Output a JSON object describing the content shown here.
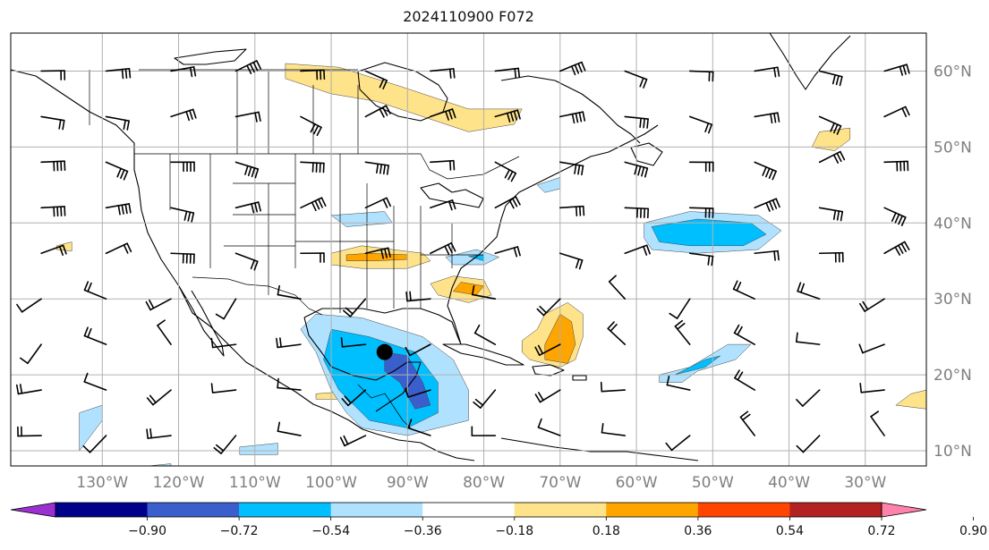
{
  "title": "2024110900 F072",
  "map": {
    "projection": "PlateCarree",
    "lon_range": [
      -142,
      -22
    ],
    "lat_range": [
      8,
      65
    ],
    "gridlines": true
  },
  "lat_labels": [
    {
      "lat": 60,
      "text": "60°N"
    },
    {
      "lat": 50,
      "text": "50°N"
    },
    {
      "lat": 40,
      "text": "40°N"
    },
    {
      "lat": 30,
      "text": "30°N"
    },
    {
      "lat": 20,
      "text": "20°N"
    },
    {
      "lat": 10,
      "text": "10°N"
    }
  ],
  "lon_labels": [
    {
      "lon": -130,
      "text": "130°W"
    },
    {
      "lon": -120,
      "text": "120°W"
    },
    {
      "lon": -110,
      "text": "110°W"
    },
    {
      "lon": -100,
      "text": "100°W"
    },
    {
      "lon": -90,
      "text": "90°W"
    },
    {
      "lon": -80,
      "text": "80°W"
    },
    {
      "lon": -70,
      "text": "70°W"
    },
    {
      "lon": -60,
      "text": "60°W"
    },
    {
      "lon": -50,
      "text": "50°W"
    },
    {
      "lon": -40,
      "text": "40°W"
    },
    {
      "lon": -30,
      "text": "30°W"
    }
  ],
  "marker": {
    "lon": -93,
    "lat": 23,
    "symbol": "filled-circle",
    "color": "#000000"
  },
  "colorbar": {
    "levels": [
      "−0.90",
      "−0.72",
      "−0.54",
      "−0.36",
      "−0.18",
      "0.18",
      "0.36",
      "0.54",
      "0.72",
      "0.90"
    ],
    "colors": [
      "#9b30d0",
      "#00008b",
      "#3a5fcd",
      "#00bfff",
      "#b0e2ff",
      "#ffffff",
      "#ffe38a",
      "#ffa500",
      "#ff4500",
      "#b22222",
      "#ff82ab"
    ],
    "extend": "both"
  },
  "shaded_regions": [
    {
      "sign": "positive",
      "level": 1,
      "points": [
        [
          -100,
          34.5
        ],
        [
          -96,
          34
        ],
        [
          -90,
          34
        ],
        [
          -87,
          35
        ],
        [
          -88,
          36
        ],
        [
          -92,
          36.5
        ],
        [
          -96,
          37
        ],
        [
          -100,
          36
        ]
      ]
    },
    {
      "sign": "positive",
      "level": 2,
      "points": [
        [
          -98,
          35
        ],
        [
          -94,
          35
        ],
        [
          -90,
          35.2
        ],
        [
          -90,
          35.8
        ],
        [
          -95,
          36
        ],
        [
          -98,
          35.8
        ]
      ]
    },
    {
      "sign": "positive",
      "level": 1,
      "points": [
        [
          -86,
          30.5
        ],
        [
          -82,
          29.5
        ],
        [
          -79,
          30.5
        ],
        [
          -80,
          32.5
        ],
        [
          -84,
          33
        ],
        [
          -87,
          32
        ]
      ]
    },
    {
      "sign": "positive",
      "level": 2,
      "points": [
        [
          -84,
          31
        ],
        [
          -81,
          30.5
        ],
        [
          -80,
          31.7
        ],
        [
          -83,
          32.2
        ]
      ]
    },
    {
      "sign": "positive",
      "level": 1,
      "points": [
        [
          -74,
          22
        ],
        [
          -70,
          21
        ],
        [
          -68,
          22
        ],
        [
          -67,
          25
        ],
        [
          -67,
          28
        ],
        [
          -69,
          29.5
        ],
        [
          -72,
          28
        ],
        [
          -73,
          26
        ],
        [
          -75,
          24.5
        ],
        [
          -75,
          23
        ]
      ]
    },
    {
      "sign": "positive",
      "level": 2,
      "points": [
        [
          -72,
          22
        ],
        [
          -69,
          21.5
        ],
        [
          -68,
          24
        ],
        [
          -68.5,
          27
        ],
        [
          -70,
          28
        ],
        [
          -71,
          26
        ],
        [
          -72,
          24
        ]
      ]
    },
    {
      "sign": "positive",
      "level": 1,
      "points": [
        [
          -106,
          61
        ],
        [
          -99,
          60.5
        ],
        [
          -91,
          58
        ],
        [
          -82,
          55
        ],
        [
          -75,
          55
        ],
        [
          -76,
          53
        ],
        [
          -82,
          52
        ],
        [
          -88,
          54
        ],
        [
          -94,
          56
        ],
        [
          -100,
          57
        ],
        [
          -106,
          59
        ]
      ]
    },
    {
      "sign": "positive",
      "level": 1,
      "points": [
        [
          -36,
          52
        ],
        [
          -32,
          52.5
        ],
        [
          -32,
          51
        ],
        [
          -34,
          49.5
        ],
        [
          -37,
          50
        ]
      ]
    },
    {
      "sign": "positive",
      "level": 1,
      "points": [
        [
          -136,
          37
        ],
        [
          -134,
          37.5
        ],
        [
          -134,
          36.3
        ],
        [
          -136,
          36.5
        ]
      ]
    },
    {
      "sign": "positive",
      "level": 1,
      "points": [
        [
          -26,
          16
        ],
        [
          -22,
          15.5
        ],
        [
          -22,
          18
        ],
        [
          -24,
          17.5
        ]
      ]
    },
    {
      "sign": "positive",
      "level": 1,
      "points": [
        [
          -102,
          17.5
        ],
        [
          -98,
          17.8
        ],
        [
          -98,
          16.8
        ],
        [
          -102,
          16.8
        ]
      ]
    },
    {
      "sign": "negative",
      "level": 1,
      "points": [
        [
          -102,
          28
        ],
        [
          -96,
          27.5
        ],
        [
          -88,
          25
        ],
        [
          -84,
          22
        ],
        [
          -82,
          18
        ],
        [
          -82,
          14
        ],
        [
          -86,
          13
        ],
        [
          -90,
          12
        ],
        [
          -96,
          13
        ],
        [
          -98,
          15
        ],
        [
          -100,
          18
        ],
        [
          -102,
          23
        ],
        [
          -104,
          26
        ]
      ]
    },
    {
      "sign": "negative",
      "level": 2,
      "points": [
        [
          -100,
          26
        ],
        [
          -95,
          25
        ],
        [
          -89,
          23
        ],
        [
          -86,
          19
        ],
        [
          -86,
          15
        ],
        [
          -90,
          13
        ],
        [
          -95,
          14
        ],
        [
          -99,
          18
        ],
        [
          -101,
          22
        ]
      ]
    },
    {
      "sign": "negative",
      "level": 3,
      "points": [
        [
          -93,
          23
        ],
        [
          -90,
          22.5
        ],
        [
          -88,
          19
        ],
        [
          -87,
          16
        ],
        [
          -89,
          15.5
        ],
        [
          -91,
          19
        ],
        [
          -93,
          20.5
        ]
      ]
    },
    {
      "sign": "negative",
      "level": 1,
      "points": [
        [
          -59,
          40
        ],
        [
          -53,
          41.5
        ],
        [
          -44,
          41
        ],
        [
          -41,
          39
        ],
        [
          -44,
          36.5
        ],
        [
          -52,
          36
        ],
        [
          -58,
          36.5
        ],
        [
          -59,
          38
        ]
      ]
    },
    {
      "sign": "negative",
      "level": 2,
      "points": [
        [
          -58,
          39.5
        ],
        [
          -52,
          40.5
        ],
        [
          -45,
          40
        ],
        [
          -43,
          38.5
        ],
        [
          -46,
          37
        ],
        [
          -53,
          37
        ],
        [
          -57,
          37.5
        ]
      ]
    },
    {
      "sign": "negative",
      "level": 1,
      "points": [
        [
          -57,
          20
        ],
        [
          -53,
          21
        ],
        [
          -48,
          24
        ],
        [
          -45,
          24
        ],
        [
          -47,
          22
        ],
        [
          -52,
          20.5
        ],
        [
          -54,
          19
        ],
        [
          -57,
          19
        ]
      ]
    },
    {
      "sign": "negative",
      "level": 2,
      "points": [
        [
          -55,
          20
        ],
        [
          -51,
          21
        ],
        [
          -49,
          22.5
        ],
        [
          -51,
          22
        ],
        [
          -54,
          20.5
        ]
      ]
    },
    {
      "sign": "negative",
      "level": 1,
      "points": [
        [
          -85,
          35.5
        ],
        [
          -81,
          36.5
        ],
        [
          -78,
          35.5
        ],
        [
          -80,
          34.5
        ],
        [
          -84,
          34.5
        ]
      ]
    },
    {
      "sign": "negative",
      "level": 2,
      "points": [
        [
          -82,
          35.6
        ],
        [
          -80,
          35.8
        ],
        [
          -80,
          35
        ]
      ]
    },
    {
      "sign": "negative",
      "level": 1,
      "points": [
        [
          -100,
          41
        ],
        [
          -93,
          41.5
        ],
        [
          -92,
          40
        ],
        [
          -98,
          39.5
        ]
      ]
    },
    {
      "sign": "negative",
      "level": 1,
      "points": [
        [
          -133,
          15
        ],
        [
          -130,
          16
        ],
        [
          -130,
          14
        ],
        [
          -133,
          10
        ]
      ]
    },
    {
      "sign": "negative",
      "level": 1,
      "points": [
        [
          -112,
          10.5
        ],
        [
          -107,
          11
        ],
        [
          -107,
          9.5
        ],
        [
          -112,
          9.5
        ]
      ]
    },
    {
      "sign": "negative",
      "level": 1,
      "points": [
        [
          -73,
          45
        ],
        [
          -70,
          46
        ],
        [
          -70,
          44.5
        ],
        [
          -72,
          44
        ]
      ]
    },
    {
      "sign": "negative",
      "level": 1,
      "points": [
        [
          -124,
          8
        ],
        [
          -121,
          8.3
        ],
        [
          -121,
          7.2
        ],
        [
          -124,
          7.2
        ]
      ]
    }
  ]
}
